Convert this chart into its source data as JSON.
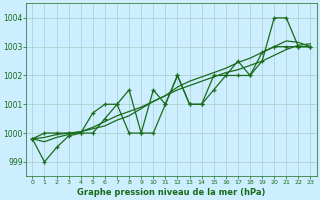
{
  "title": "Graphe pression niveau de la mer (hPa)",
  "bg_color": "#cceeff",
  "grid_color": "#aacccc",
  "line_color": "#1a6b1a",
  "xlim": [
    -0.5,
    23.5
  ],
  "ylim": [
    998.5,
    1004.5
  ],
  "yticks": [
    999,
    1000,
    1001,
    1002,
    1003,
    1004
  ],
  "xticks": [
    0,
    1,
    2,
    3,
    4,
    5,
    6,
    7,
    8,
    9,
    10,
    11,
    12,
    13,
    14,
    15,
    16,
    17,
    18,
    19,
    20,
    21,
    22,
    23
  ],
  "series": [
    {
      "y": [
        999.8,
        999.0,
        999.5,
        999.9,
        1000.0,
        1000.0,
        1000.5,
        1001.0,
        1000.0,
        1000.0,
        1000.0,
        1001.0,
        1002.0,
        1001.0,
        1001.0,
        1001.5,
        1002.0,
        1002.0,
        1002.0,
        1002.5,
        1004.0,
        1004.0,
        1003.0,
        1003.0
      ],
      "marker": "+",
      "lw": 0.9
    },
    {
      "y": [
        999.8,
        999.7,
        999.85,
        999.95,
        1000.05,
        1000.2,
        1000.4,
        1000.6,
        1000.75,
        1000.9,
        1001.1,
        1001.3,
        1001.5,
        1001.65,
        1001.8,
        1001.95,
        1002.1,
        1002.2,
        1002.35,
        1002.5,
        1002.7,
        1002.9,
        1003.05,
        1003.1
      ],
      "marker": null,
      "lw": 0.9
    },
    {
      "y": [
        999.8,
        1000.0,
        1000.0,
        1000.0,
        1000.0,
        1000.7,
        1001.0,
        1001.0,
        1001.5,
        1000.0,
        1001.5,
        1001.0,
        1002.0,
        1001.0,
        1001.0,
        1002.0,
        1002.0,
        1002.5,
        1002.0,
        1002.8,
        1003.0,
        1003.0,
        1003.0,
        1003.0
      ],
      "marker": "+",
      "lw": 0.9
    },
    {
      "y": [
        999.8,
        999.85,
        999.95,
        1000.0,
        1000.05,
        1000.15,
        1000.25,
        1000.45,
        1000.6,
        1000.85,
        1001.1,
        1001.3,
        1001.6,
        1001.8,
        1001.95,
        1002.1,
        1002.25,
        1002.45,
        1002.6,
        1002.8,
        1003.0,
        1003.2,
        1003.15,
        1003.0
      ],
      "marker": null,
      "lw": 0.9
    }
  ],
  "xlabel_fontsize": 6.0,
  "ytick_fontsize": 5.5,
  "xtick_fontsize": 4.5
}
